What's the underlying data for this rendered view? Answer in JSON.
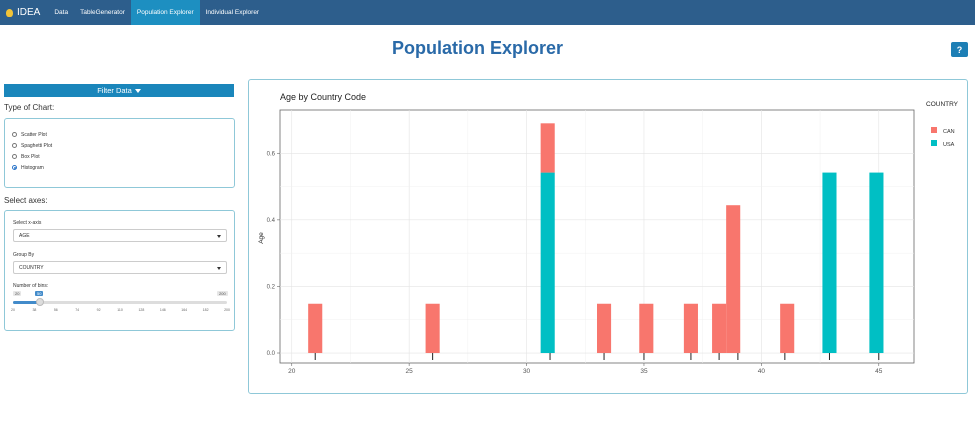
{
  "navbar": {
    "brand": "IDEA",
    "items": [
      {
        "label": "Data",
        "active": false
      },
      {
        "label": "TableGenerator",
        "active": false
      },
      {
        "label": "Population Explorer",
        "active": true
      },
      {
        "label": "Individual Explorer",
        "active": false
      }
    ]
  },
  "page": {
    "title": "Population Explorer",
    "help_label": "?"
  },
  "filter": {
    "label": "Filter Data"
  },
  "chart_type": {
    "label": "Type of Chart:",
    "options": [
      {
        "label": "Scatter Plot",
        "checked": false
      },
      {
        "label": "Spaghetti Plot",
        "checked": false
      },
      {
        "label": "Box Plot",
        "checked": false
      },
      {
        "label": "Histogram",
        "checked": true
      }
    ]
  },
  "axes": {
    "label": "Select axes:",
    "x_label": "Select x-axis",
    "x_value": "AGE",
    "group_label": "Group By",
    "group_value": "COUNTRY",
    "bins_label": "Number of bins:",
    "bins_min": "20",
    "bins_value": "50",
    "bins_max": "200",
    "bins_ticks": [
      "20",
      "38",
      "56",
      "74",
      "92",
      "110",
      "128",
      "146",
      "164",
      "182",
      "200"
    ]
  },
  "chart_data": {
    "type": "bar",
    "title": "Age by Country Code",
    "xlabel": "",
    "ylabel": "Age",
    "xlim": [
      19.5,
      46.5
    ],
    "ylim": [
      -0.03,
      0.73
    ],
    "x_ticks": [
      20,
      25,
      30,
      35,
      40,
      45
    ],
    "y_ticks": [
      0.0,
      0.2,
      0.4,
      0.6
    ],
    "y_tick_labels": [
      "0.0",
      "0.2",
      "0.4",
      "0.6"
    ],
    "legend": {
      "title": "COUNTRY",
      "position": "right"
    },
    "series": [
      {
        "name": "CAN",
        "color": "#f8766d",
        "bars": [
          [
            20.7,
            21.3,
            0.148
          ],
          [
            25.7,
            26.3,
            0.148
          ],
          [
            30.6,
            31.2,
            0.148
          ],
          [
            33.0,
            33.6,
            0.148
          ],
          [
            34.8,
            35.4,
            0.148
          ],
          [
            36.7,
            37.3,
            0.148
          ],
          [
            37.9,
            38.5,
            0.148
          ],
          [
            38.5,
            39.1,
            0.444
          ],
          [
            40.8,
            41.4,
            0.148
          ]
        ]
      },
      {
        "name": "USA",
        "color": "#00bfc4",
        "bars": [
          [
            30.6,
            31.2,
            0.542
          ],
          [
            42.6,
            43.2,
            0.542
          ],
          [
            44.6,
            45.2,
            0.542
          ]
        ]
      }
    ],
    "rug": [
      21,
      26,
      31,
      33.3,
      35,
      37,
      38.2,
      39,
      41,
      42.9,
      45
    ]
  }
}
